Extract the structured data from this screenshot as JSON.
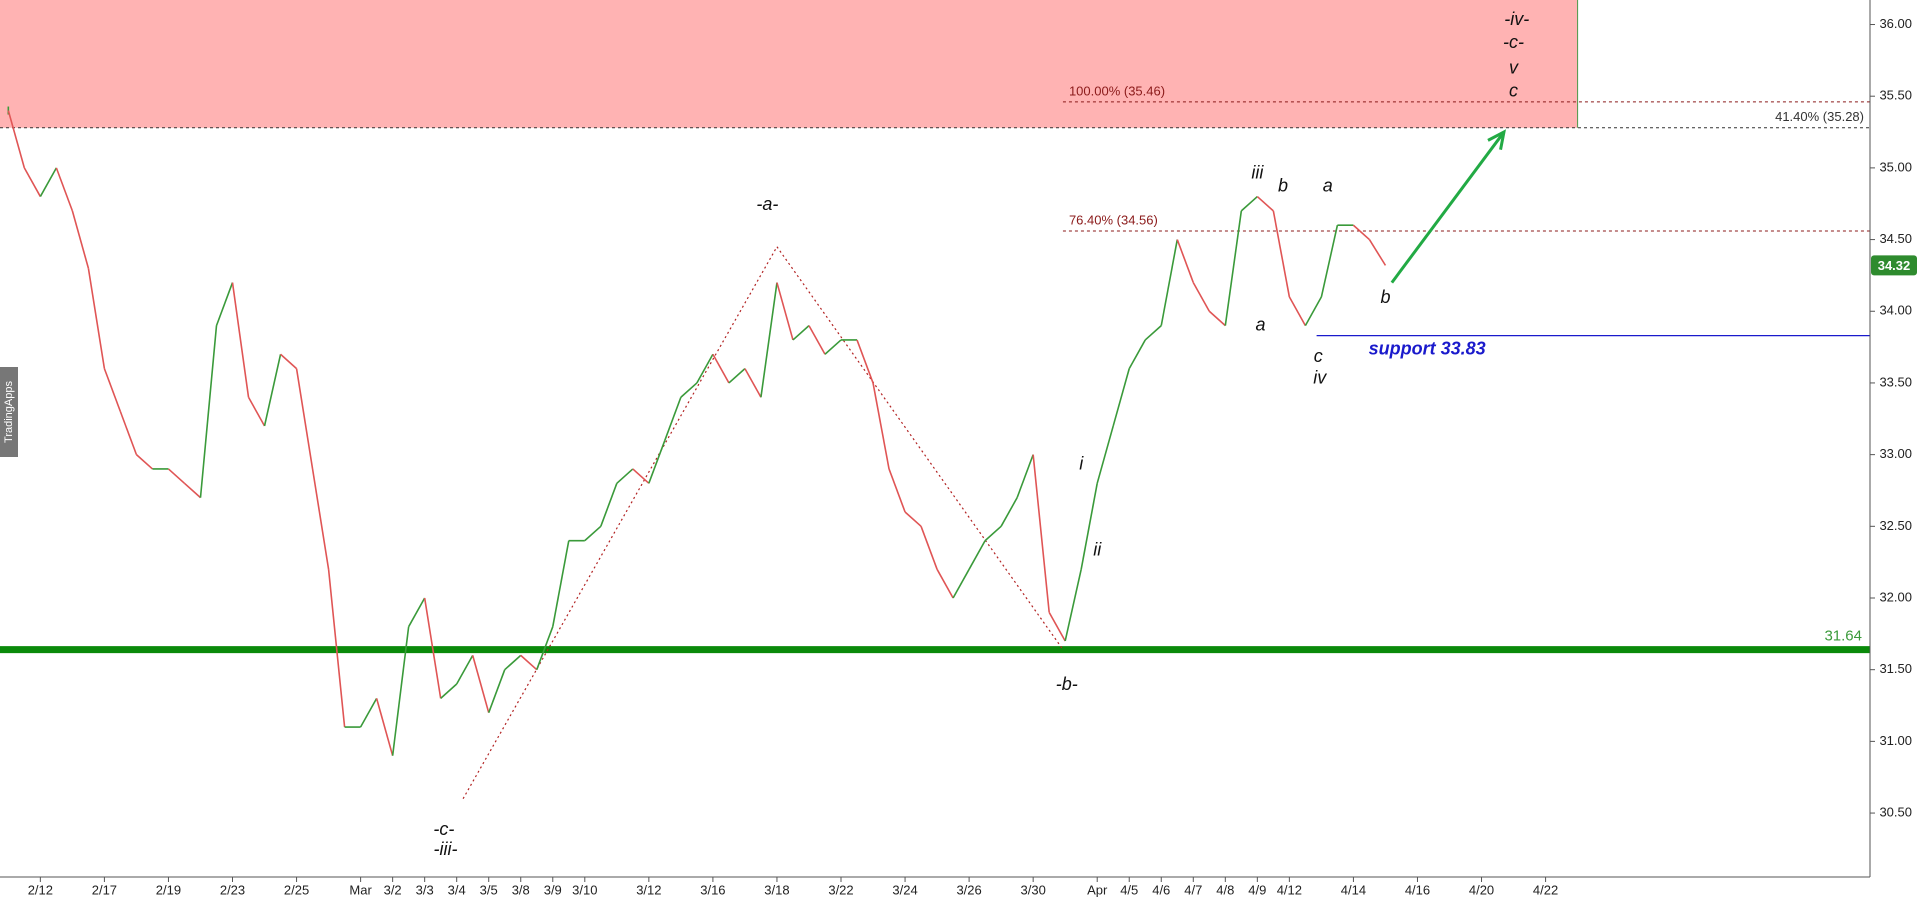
{
  "chart_data": {
    "type": "price",
    "watermark": "TradingApps",
    "x": [
      -1,
      -0.5,
      0,
      0.5,
      1,
      1.5,
      2,
      2.5,
      3,
      3.5,
      4,
      4.5,
      5,
      5.5,
      6,
      6.5,
      7,
      7.5,
      8,
      8.5,
      9,
      9.5,
      10,
      10.5,
      11,
      11.5,
      12,
      12.5,
      13,
      13.5,
      14,
      14.5,
      15,
      15.5,
      16,
      16.5,
      17,
      17.5,
      18,
      18.5,
      19,
      19.5,
      20,
      20.5,
      21,
      21.5,
      22,
      22.5,
      23,
      23.5,
      24,
      24.5,
      25,
      25.5,
      26,
      26.5,
      27,
      27.5,
      28,
      28.5,
      29,
      29.5,
      30,
      30.5,
      31,
      31.5,
      32,
      32.5,
      33,
      33.5,
      34,
      34.5,
      35,
      35.5,
      36,
      36.5,
      37,
      37.5,
      38,
      38.5,
      39,
      39.5,
      40,
      40.5,
      41,
      41.5,
      42
    ],
    "values": [
      35.4,
      35.0,
      34.8,
      35.0,
      34.7,
      34.3,
      33.6,
      33.3,
      33.0,
      32.9,
      32.9,
      32.8,
      32.7,
      33.9,
      34.2,
      33.4,
      33.2,
      33.7,
      33.6,
      32.9,
      32.2,
      31.1,
      31.1,
      31.3,
      30.9,
      31.8,
      32.0,
      31.3,
      31.4,
      31.6,
      31.2,
      31.5,
      31.6,
      31.5,
      31.8,
      32.4,
      32.4,
      32.5,
      32.8,
      32.9,
      32.8,
      33.1,
      33.4,
      33.5,
      33.7,
      33.5,
      33.6,
      33.4,
      34.2,
      33.8,
      33.9,
      33.7,
      33.8,
      33.8,
      33.5,
      32.9,
      32.6,
      32.5,
      32.2,
      32.0,
      32.2,
      32.4,
      32.5,
      32.7,
      33.0,
      31.9,
      31.7,
      32.2,
      32.8,
      33.2,
      33.6,
      33.8,
      33.9,
      34.5,
      34.2,
      34.0,
      33.9,
      34.7,
      34.8,
      34.7,
      34.1,
      33.9,
      34.1,
      34.6,
      34.6,
      34.5,
      34.32
    ],
    "up_color": "#3a9a3a",
    "down_color": "#e05555",
    "last_price": 34.32,
    "xlim": [
      -1.26,
      57.13
    ],
    "xticks": [
      {
        "value": 0,
        "label": "2/12"
      },
      {
        "value": 2,
        "label": "2/17"
      },
      {
        "value": 4,
        "label": "2/19"
      },
      {
        "value": 6,
        "label": "2/23"
      },
      {
        "value": 8,
        "label": "2/25"
      },
      {
        "value": 10,
        "label": "Mar"
      },
      {
        "value": 11,
        "label": "3/2"
      },
      {
        "value": 12,
        "label": "3/3"
      },
      {
        "value": 13,
        "label": "3/4"
      },
      {
        "value": 14,
        "label": "3/5"
      },
      {
        "value": 15,
        "label": "3/8"
      },
      {
        "value": 16,
        "label": "3/9"
      },
      {
        "value": 17,
        "label": "3/10"
      },
      {
        "value": 19,
        "label": "3/12"
      },
      {
        "value": 21,
        "label": "3/16"
      },
      {
        "value": 23,
        "label": "3/18"
      },
      {
        "value": 25,
        "label": "3/22"
      },
      {
        "value": 27,
        "label": "3/24"
      },
      {
        "value": 29,
        "label": "3/26"
      },
      {
        "value": 31,
        "label": "3/30"
      },
      {
        "value": 33,
        "label": "Apr"
      },
      {
        "value": 34,
        "label": "4/5"
      },
      {
        "value": 35,
        "label": "4/6"
      },
      {
        "value": 36,
        "label": "4/7"
      },
      {
        "value": 37,
        "label": "4/8"
      },
      {
        "value": 38,
        "label": "4/9"
      },
      {
        "value": 39,
        "label": "4/12"
      },
      {
        "value": 41,
        "label": "4/14"
      },
      {
        "value": 43,
        "label": "4/16"
      },
      {
        "value": 45,
        "label": "4/20"
      },
      {
        "value": 47,
        "label": "4/22"
      }
    ],
    "ylim": [
      30.054,
      36.171
    ],
    "yticks": [
      {
        "value": 30.5,
        "label": "30.50"
      },
      {
        "value": 31,
        "label": "31.00"
      },
      {
        "value": 31.5,
        "label": "31.50"
      },
      {
        "value": 32,
        "label": "32.00"
      },
      {
        "value": 32.5,
        "label": "32.50"
      },
      {
        "value": 33,
        "label": "33.00"
      },
      {
        "value": 33.5,
        "label": "33.50"
      },
      {
        "value": 34,
        "label": "34.00"
      },
      {
        "value": 34.5,
        "label": "34.50"
      },
      {
        "value": 35,
        "label": "35.00"
      },
      {
        "value": 35.5,
        "label": "35.50"
      },
      {
        "value": 36,
        "label": "36.00"
      }
    ],
    "zone": {
      "xlim": [
        -1.26,
        48
      ],
      "ylim": [
        35.28,
        36.171
      ],
      "color": "#ffb3b3"
    },
    "levels": [
      {
        "label": "100.00% (35.46)",
        "value": 35.46,
        "x_start": 31.93,
        "color": "#8b1a1a",
        "label_side": "left"
      },
      {
        "label": "76.40% (34.56)",
        "value": 34.56,
        "x_start": 31.93,
        "color": "#8b1a1a",
        "label_side": "left"
      },
      {
        "label": "41.40% (35.28)",
        "value": 35.28,
        "x_start": -1.26,
        "color": "#333333",
        "label_side": "right"
      }
    ],
    "support": {
      "label": "support 33.83",
      "value": 33.83,
      "x_start": 39.85,
      "color": "#1a1acc"
    },
    "base_line": {
      "label": "31.64",
      "value": 31.64,
      "color": "#0a8a0a"
    },
    "wave_path": {
      "x": [
        13.2,
        23,
        31.9
      ],
      "values": [
        30.6,
        34.45,
        31.65
      ],
      "color": "#b22222"
    },
    "arrow": {
      "x": [
        42.2,
        45.7
      ],
      "values": [
        34.2,
        35.25
      ],
      "color": "#22aa44"
    },
    "wave_labels": [
      {
        "text": "-iv-",
        "x": 46.1,
        "y": 36.03
      },
      {
        "text": "-c-",
        "x": 46.0,
        "y": 35.87
      },
      {
        "text": "v",
        "x": 46.0,
        "y": 35.69
      },
      {
        "text": "c",
        "x": 46.0,
        "y": 35.53
      },
      {
        "text": "-a-",
        "x": 22.7,
        "y": 34.74
      },
      {
        "text": "iii",
        "x": 38.0,
        "y": 34.96
      },
      {
        "text": "b",
        "x": 38.8,
        "y": 34.87
      },
      {
        "text": "a",
        "x": 40.2,
        "y": 34.87
      },
      {
        "text": "a",
        "x": 38.1,
        "y": 33.9
      },
      {
        "text": "c",
        "x": 39.9,
        "y": 33.68
      },
      {
        "text": "iv",
        "x": 39.95,
        "y": 33.53
      },
      {
        "text": "b",
        "x": 42.0,
        "y": 34.09
      },
      {
        "text": "i",
        "x": 32.5,
        "y": 32.93
      },
      {
        "text": "ii",
        "x": 33.0,
        "y": 32.33
      },
      {
        "text": "-b-",
        "x": 32.05,
        "y": 31.39
      },
      {
        "text": "-c-",
        "x": 12.6,
        "y": 30.38
      },
      {
        "text": "-iii-",
        "x": 12.65,
        "y": 30.24
      }
    ]
  }
}
